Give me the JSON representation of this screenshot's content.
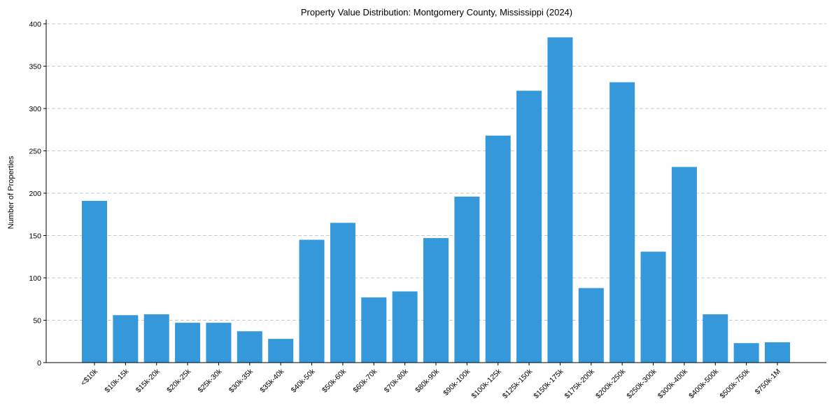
{
  "chart_data": {
    "type": "bar",
    "title": "Property Value Distribution: Montgomery County, Mississippi (2024)",
    "xlabel": "",
    "ylabel": "Number of Properties",
    "ylim": [
      0,
      400
    ],
    "yticks": [
      0,
      50,
      100,
      150,
      200,
      250,
      300,
      350,
      400
    ],
    "grid": true,
    "grid_axis": "y",
    "bar_color": "#3498db",
    "categories": [
      "<$10k",
      "$10k-15k",
      "$15k-20k",
      "$20k-25k",
      "$25k-30k",
      "$30k-35k",
      "$35k-40k",
      "$40k-50k",
      "$50k-60k",
      "$60k-70k",
      "$70k-80k",
      "$80k-90k",
      "$90k-100k",
      "$100k-125k",
      "$125k-150k",
      "$150k-175k",
      "$175k-200k",
      "$200k-250k",
      "$250k-300k",
      "$300k-400k",
      "$400k-500k",
      "$500k-750k",
      "$750k-1M"
    ],
    "values": [
      191,
      56,
      57,
      47,
      47,
      37,
      28,
      145,
      165,
      77,
      84,
      147,
      196,
      268,
      321,
      384,
      88,
      331,
      131,
      231,
      57,
      23,
      24
    ]
  }
}
